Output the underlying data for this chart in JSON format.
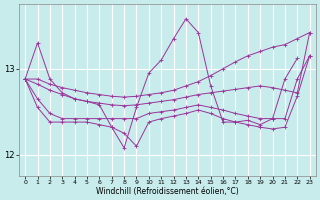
{
  "xlabel": "Windchill (Refroidissement éolien,°C)",
  "background_color": "#c8ecec",
  "grid_color": "#ffffff",
  "line_color": "#993399",
  "marker": "+",
  "xlim": [
    -0.5,
    23.5
  ],
  "ylim": [
    11.75,
    13.75
  ],
  "yticks": [
    12,
    13
  ],
  "xticks": [
    0,
    1,
    2,
    3,
    4,
    5,
    6,
    7,
    8,
    9,
    10,
    11,
    12,
    13,
    14,
    15,
    16,
    17,
    18,
    19,
    20,
    21,
    22,
    23
  ],
  "series": [
    {
      "x": [
        0,
        1,
        2,
        3,
        4,
        5,
        6,
        7,
        8,
        9,
        10,
        11,
        12,
        13,
        14,
        15,
        16,
        17,
        18,
        19,
        20,
        21,
        22,
        23
      ],
      "y": [
        12.88,
        13.3,
        12.88,
        12.72,
        12.65,
        12.62,
        12.58,
        12.32,
        12.08,
        12.55,
        12.95,
        13.1,
        13.35,
        13.58,
        13.42,
        12.8,
        12.38,
        12.38,
        12.4,
        12.35,
        12.42,
        12.88,
        13.12,
        null
      ]
    },
    {
      "x": [
        0,
        1,
        2,
        3,
        4,
        5,
        6,
        7,
        8,
        9,
        10,
        11,
        12,
        13,
        14,
        15,
        16,
        17,
        18,
        19,
        20,
        21,
        22,
        23
      ],
      "y": [
        12.88,
        12.88,
        12.82,
        12.78,
        12.75,
        12.72,
        12.7,
        12.68,
        12.67,
        12.68,
        12.7,
        12.72,
        12.75,
        12.8,
        12.85,
        12.92,
        13.0,
        13.08,
        13.15,
        13.2,
        13.25,
        13.28,
        13.35,
        13.42
      ]
    },
    {
      "x": [
        0,
        1,
        2,
        3,
        4,
        5,
        6,
        7,
        8,
        9,
        10,
        11,
        12,
        13,
        14,
        15,
        16,
        17,
        18,
        19,
        20,
        21,
        22,
        23
      ],
      "y": [
        12.88,
        12.82,
        12.75,
        12.7,
        12.65,
        12.62,
        12.6,
        12.58,
        12.57,
        12.58,
        12.6,
        12.62,
        12.64,
        12.67,
        12.7,
        12.72,
        12.74,
        12.76,
        12.78,
        12.8,
        12.78,
        12.75,
        12.72,
        13.42
      ]
    },
    {
      "x": [
        0,
        1,
        2,
        3,
        4,
        5,
        6,
        7,
        8,
        9,
        10,
        11,
        12,
        13,
        14,
        15,
        16,
        17,
        18,
        19,
        20,
        21,
        22,
        23
      ],
      "y": [
        12.88,
        12.65,
        12.48,
        12.42,
        12.42,
        12.42,
        12.42,
        12.42,
        12.42,
        12.42,
        12.48,
        12.5,
        12.52,
        12.55,
        12.58,
        12.55,
        12.52,
        12.48,
        12.45,
        12.42,
        12.42,
        12.42,
        12.88,
        13.15
      ]
    },
    {
      "x": [
        0,
        1,
        2,
        3,
        4,
        5,
        6,
        7,
        8,
        9,
        10,
        11,
        12,
        13,
        14,
        15,
        16,
        17,
        18,
        19,
        20,
        21,
        22,
        23
      ],
      "y": [
        12.88,
        12.55,
        12.38,
        12.38,
        12.38,
        12.38,
        12.35,
        12.32,
        12.25,
        12.1,
        12.38,
        12.42,
        12.45,
        12.48,
        12.52,
        12.48,
        12.42,
        12.38,
        12.35,
        12.32,
        12.3,
        12.32,
        12.68,
        13.15
      ]
    }
  ]
}
